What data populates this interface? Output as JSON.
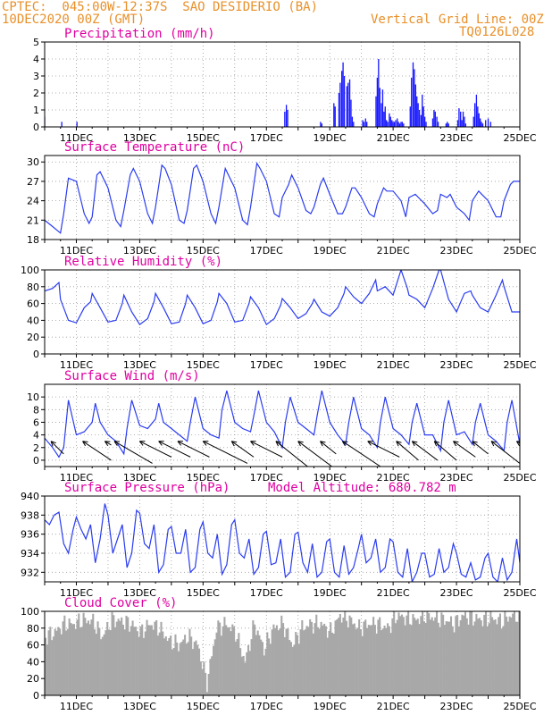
{
  "header": {
    "line1": "CPTEC:  045:00W-12:37S  SAO DESIDERIO (BA)",
    "line2": "10DEC2020 00Z (GMT)",
    "grid_note": "Vertical Grid Line: 00Z",
    "code": "TQ0126L028"
  },
  "colors": {
    "header": "#e8902a",
    "title": "#e000a0",
    "line": "#2a3cf0",
    "bar": "#1a1aff",
    "cloud": "#a8a8a8",
    "arrow": "#000000"
  },
  "x_axis": {
    "start_day": 10,
    "end_day": 25,
    "labels": [
      {
        "day": 11,
        "text": "11DEC"
      },
      {
        "day": 13,
        "text": "13DEC"
      },
      {
        "day": 15,
        "text": "15DEC"
      },
      {
        "day": 17,
        "text": "17DEC"
      },
      {
        "day": 19,
        "text": "19DEC"
      },
      {
        "day": 21,
        "text": "21DEC"
      },
      {
        "day": 23,
        "text": "23DEC"
      },
      {
        "day": 25,
        "text": "25DEC"
      }
    ]
  },
  "chart_data": [
    {
      "type": "bar",
      "title": "Precipitation (mm/h)",
      "ylim": [
        0,
        5
      ],
      "yticks": [
        0,
        1,
        2,
        3,
        4,
        5
      ],
      "x": [
        10.0,
        10.54,
        11.02,
        17.58,
        17.63,
        17.67,
        18.71,
        18.75,
        19.13,
        19.17,
        19.29,
        19.33,
        19.38,
        19.42,
        19.46,
        19.54,
        19.58,
        19.63,
        19.67,
        19.71,
        19.75,
        20.04,
        20.08,
        20.13,
        20.17,
        20.46,
        20.5,
        20.54,
        20.58,
        20.63,
        20.67,
        20.71,
        20.75,
        20.79,
        20.83,
        20.88,
        20.92,
        20.96,
        21.0,
        21.04,
        21.08,
        21.13,
        21.17,
        21.21,
        21.25,
        21.29,
        21.33,
        21.54,
        21.58,
        21.63,
        21.67,
        21.71,
        21.75,
        21.79,
        21.83,
        21.88,
        21.92,
        21.96,
        22.0,
        22.04,
        22.25,
        22.29,
        22.33,
        22.38,
        22.42,
        22.67,
        22.71,
        22.75,
        23.04,
        23.08,
        23.13,
        23.17,
        23.21,
        23.25,
        23.29,
        23.54,
        23.58,
        23.63,
        23.67,
        23.71,
        23.75,
        23.79,
        23.83,
        23.92,
        24.0,
        24.08
      ],
      "values": [
        0.6,
        0.3,
        0.3,
        0.9,
        1.3,
        1.0,
        0.3,
        0.2,
        1.4,
        1.2,
        2.0,
        2.6,
        3.3,
        3.8,
        3.0,
        2.4,
        2.6,
        2.8,
        1.6,
        0.6,
        0.3,
        0.4,
        0.3,
        0.5,
        0.3,
        1.8,
        2.9,
        4.0,
        2.3,
        1.4,
        2.2,
        0.9,
        1.2,
        0.4,
        0.3,
        0.8,
        0.6,
        0.4,
        0.3,
        0.3,
        0.4,
        0.5,
        0.3,
        0.2,
        0.3,
        0.3,
        0.2,
        1.2,
        2.9,
        3.8,
        3.4,
        2.5,
        1.8,
        1.4,
        1.0,
        0.7,
        1.9,
        1.2,
        0.6,
        0.3,
        0.5,
        1.0,
        0.9,
        0.6,
        0.3,
        0.2,
        0.3,
        0.2,
        0.4,
        1.1,
        0.9,
        0.4,
        0.9,
        0.6,
        0.2,
        0.6,
        1.4,
        1.9,
        1.2,
        0.8,
        0.5,
        0.3,
        0.2,
        0.4,
        0.5,
        0.3
      ]
    },
    {
      "type": "line",
      "title": "Surface Temperature (nC)",
      "ylim": [
        18,
        31
      ],
      "yticks": [
        18,
        21,
        24,
        27,
        30
      ],
      "x": [
        10.0,
        10.25,
        10.5,
        10.6,
        10.75,
        11.0,
        11.25,
        11.4,
        11.5,
        11.65,
        11.75,
        12.0,
        12.25,
        12.4,
        12.5,
        12.7,
        12.8,
        13.0,
        13.25,
        13.4,
        13.5,
        13.7,
        13.8,
        14.0,
        14.25,
        14.4,
        14.5,
        14.7,
        14.8,
        15.0,
        15.25,
        15.4,
        15.5,
        15.7,
        15.8,
        16.0,
        16.25,
        16.4,
        16.5,
        16.7,
        16.8,
        17.0,
        17.25,
        17.4,
        17.5,
        17.7,
        17.8,
        18.0,
        18.25,
        18.4,
        18.5,
        18.7,
        18.8,
        19.0,
        19.25,
        19.4,
        19.5,
        19.7,
        19.8,
        20.0,
        20.25,
        20.4,
        20.5,
        20.7,
        20.8,
        21.0,
        21.25,
        21.4,
        21.5,
        21.7,
        21.8,
        22.0,
        22.25,
        22.4,
        22.5,
        22.7,
        22.8,
        23.0,
        23.25,
        23.4,
        23.5,
        23.7,
        23.8,
        24.0,
        24.25,
        24.4,
        24.5,
        24.7,
        24.8,
        25.0
      ],
      "values": [
        21.0,
        20.0,
        19.0,
        22.0,
        27.5,
        27.0,
        22.0,
        20.5,
        21.5,
        28.0,
        28.5,
        26.0,
        21.0,
        20.0,
        22.5,
        28.0,
        29.0,
        27.0,
        22.0,
        20.5,
        23.0,
        29.5,
        29.0,
        26.5,
        21.0,
        20.5,
        22.5,
        29.0,
        29.5,
        27.0,
        22.0,
        20.5,
        23.0,
        29.0,
        28.0,
        26.0,
        21.0,
        20.3,
        23.0,
        29.8,
        29.0,
        27.0,
        22.0,
        21.5,
        24.5,
        26.5,
        28.0,
        26.0,
        22.5,
        22.0,
        23.0,
        26.5,
        27.5,
        25.0,
        22.0,
        22.0,
        23.0,
        26.0,
        26.0,
        24.5,
        22.0,
        21.5,
        23.5,
        26.0,
        25.5,
        25.5,
        24.0,
        21.5,
        24.5,
        25.0,
        24.5,
        23.5,
        22.0,
        22.5,
        25.0,
        24.5,
        25.0,
        23.0,
        22.0,
        21.0,
        24.0,
        25.5,
        25.0,
        24.0,
        21.5,
        21.5,
        24.0,
        26.5,
        27.0,
        27.0
      ]
    },
    {
      "type": "line",
      "title": "Relative Humidity (%)",
      "ylim": [
        0,
        100
      ],
      "yticks": [
        0,
        20,
        40,
        60,
        80,
        100
      ],
      "x": [
        10.0,
        10.25,
        10.45,
        10.5,
        10.75,
        11.0,
        11.25,
        11.45,
        11.5,
        11.75,
        12.0,
        12.25,
        12.45,
        12.5,
        12.75,
        13.0,
        13.25,
        13.45,
        13.5,
        13.75,
        14.0,
        14.25,
        14.45,
        14.5,
        14.75,
        15.0,
        15.25,
        15.45,
        15.5,
        15.75,
        16.0,
        16.25,
        16.45,
        16.5,
        16.75,
        17.0,
        17.25,
        17.45,
        17.5,
        17.75,
        18.0,
        18.25,
        18.45,
        18.5,
        18.75,
        19.0,
        19.25,
        19.45,
        19.5,
        19.75,
        20.0,
        20.25,
        20.45,
        20.5,
        20.75,
        21.0,
        21.25,
        21.45,
        21.5,
        21.75,
        22.0,
        22.25,
        22.45,
        22.5,
        22.75,
        23.0,
        23.25,
        23.45,
        23.5,
        23.75,
        24.0,
        24.25,
        24.45,
        24.5,
        24.75,
        25.0
      ],
      "values": [
        75,
        78,
        85,
        65,
        40,
        37,
        55,
        62,
        72,
        55,
        38,
        40,
        60,
        70,
        50,
        35,
        42,
        62,
        72,
        55,
        36,
        38,
        60,
        70,
        55,
        36,
        40,
        62,
        72,
        60,
        38,
        40,
        60,
        68,
        55,
        35,
        42,
        58,
        66,
        55,
        42,
        48,
        60,
        65,
        50,
        45,
        55,
        72,
        80,
        68,
        60,
        72,
        88,
        75,
        80,
        70,
        100,
        78,
        70,
        65,
        55,
        78,
        100,
        100,
        65,
        50,
        72,
        75,
        70,
        55,
        50,
        70,
        88,
        80,
        50,
        50
      ]
    },
    {
      "type": "line",
      "title": "Surface Wind (m/s)",
      "ylim": [
        -1,
        12
      ],
      "yticks": [
        0,
        2,
        4,
        6,
        8,
        10
      ],
      "x": [
        10.0,
        10.25,
        10.45,
        10.6,
        10.75,
        11.0,
        11.25,
        11.5,
        11.6,
        11.75,
        12.0,
        12.25,
        12.5,
        12.6,
        12.75,
        13.0,
        13.25,
        13.5,
        13.6,
        13.75,
        14.0,
        14.25,
        14.5,
        14.6,
        14.75,
        15.0,
        15.25,
        15.5,
        15.6,
        15.75,
        16.0,
        16.25,
        16.5,
        16.6,
        16.75,
        17.0,
        17.25,
        17.5,
        17.6,
        17.75,
        18.0,
        18.25,
        18.5,
        18.6,
        18.75,
        19.0,
        19.25,
        19.5,
        19.6,
        19.75,
        20.0,
        20.25,
        20.5,
        20.6,
        20.75,
        21.0,
        21.25,
        21.5,
        21.6,
        21.75,
        22.0,
        22.25,
        22.5,
        22.6,
        22.75,
        23.0,
        23.25,
        23.5,
        23.6,
        23.75,
        24.0,
        24.25,
        24.5,
        24.6,
        24.75,
        25.0
      ],
      "values": [
        3.5,
        2.0,
        0.5,
        2.0,
        9.5,
        4.0,
        4.5,
        6.0,
        9.0,
        6.0,
        4.0,
        3.0,
        1.0,
        5.0,
        9.5,
        5.5,
        5.0,
        6.5,
        9.0,
        6.0,
        5.0,
        4.0,
        3.0,
        6.0,
        10.0,
        5.0,
        4.0,
        3.5,
        8.0,
        11.0,
        6.0,
        5.0,
        4.5,
        7.0,
        11.0,
        6.0,
        4.5,
        2.0,
        6.0,
        10.0,
        6.0,
        5.0,
        4.0,
        7.0,
        11.0,
        6.0,
        4.0,
        2.5,
        6.0,
        10.0,
        5.0,
        4.0,
        2.0,
        6.0,
        10.0,
        5.0,
        4.0,
        2.5,
        6.0,
        9.0,
        4.0,
        4.0,
        1.5,
        6.0,
        9.5,
        4.0,
        4.5,
        2.5,
        6.0,
        9.0,
        4.0,
        3.0,
        1.5,
        6.0,
        9.5,
        2.5
      ],
      "arrows": [
        {
          "x": 10.2,
          "dx": 0.4,
          "dy": 2.0
        },
        {
          "x": 11.2,
          "dx": 0.9,
          "dy": 3.0
        },
        {
          "x": 11.9,
          "dx": 0.2,
          "dy": 0.6
        },
        {
          "x": 12.2,
          "dx": 1.2,
          "dy": 3.5
        },
        {
          "x": 13.0,
          "dx": 1.0,
          "dy": 2.5
        },
        {
          "x": 13.6,
          "dx": 1.0,
          "dy": 2.5
        },
        {
          "x": 14.2,
          "dx": 1.0,
          "dy": 2.5
        },
        {
          "x": 15.0,
          "dx": 1.4,
          "dy": 3.5
        },
        {
          "x": 15.9,
          "dx": 0.7,
          "dy": 2.5
        },
        {
          "x": 16.5,
          "dx": 1.0,
          "dy": 2.5
        },
        {
          "x": 17.3,
          "dx": 1.0,
          "dy": 4.0
        },
        {
          "x": 18.0,
          "dx": 1.2,
          "dy": 4.5
        },
        {
          "x": 18.7,
          "dx": 0.5,
          "dy": 2.0
        },
        {
          "x": 19.4,
          "dx": 1.2,
          "dy": 4.0
        },
        {
          "x": 20.2,
          "dx": 1.0,
          "dy": 2.5
        },
        {
          "x": 21.1,
          "dx": 0.7,
          "dy": 3.0
        },
        {
          "x": 21.6,
          "dx": 0.8,
          "dy": 3.0
        },
        {
          "x": 22.3,
          "dx": 0.7,
          "dy": 3.0
        },
        {
          "x": 22.9,
          "dx": 0.7,
          "dy": 2.5
        },
        {
          "x": 23.5,
          "dx": 0.5,
          "dy": 2.0
        },
        {
          "x": 24.1,
          "dx": 0.9,
          "dy": 3.5
        },
        {
          "x": 24.9,
          "dx": 0.6,
          "dy": 2.0
        }
      ]
    },
    {
      "type": "line",
      "title": "Surface Pressure (hPa)",
      "note": "Model Altitude: 680.782 m",
      "ylim": [
        931,
        940
      ],
      "yticks": [
        932,
        934,
        936,
        938,
        940
      ],
      "x": [
        10.0,
        10.15,
        10.3,
        10.45,
        10.6,
        10.75,
        10.9,
        11.0,
        11.15,
        11.3,
        11.45,
        11.6,
        11.75,
        11.9,
        12.0,
        12.15,
        12.3,
        12.45,
        12.6,
        12.75,
        12.9,
        13.0,
        13.15,
        13.3,
        13.45,
        13.6,
        13.75,
        13.9,
        14.0,
        14.15,
        14.3,
        14.45,
        14.6,
        14.75,
        14.9,
        15.0,
        15.15,
        15.3,
        15.45,
        15.6,
        15.75,
        15.9,
        16.0,
        16.15,
        16.3,
        16.45,
        16.6,
        16.75,
        16.9,
        17.0,
        17.15,
        17.3,
        17.45,
        17.6,
        17.75,
        17.9,
        18.0,
        18.15,
        18.3,
        18.45,
        18.6,
        18.75,
        18.9,
        19.0,
        19.15,
        19.3,
        19.45,
        19.6,
        19.75,
        19.9,
        20.0,
        20.15,
        20.3,
        20.45,
        20.6,
        20.75,
        20.9,
        21.0,
        21.15,
        21.3,
        21.45,
        21.6,
        21.75,
        21.9,
        22.0,
        22.15,
        22.3,
        22.45,
        22.6,
        22.75,
        22.9,
        23.0,
        23.15,
        23.3,
        23.45,
        23.6,
        23.75,
        23.9,
        24.0,
        24.15,
        24.3,
        24.45,
        24.6,
        24.75,
        24.9,
        25.0
      ],
      "values": [
        937.5,
        937.0,
        938.0,
        938.3,
        935.0,
        934.0,
        936.5,
        937.8,
        936.5,
        935.5,
        937.0,
        933.0,
        935.5,
        939.2,
        938.0,
        934.0,
        935.5,
        937.0,
        932.5,
        934.0,
        938.5,
        938.2,
        935.0,
        934.5,
        937.0,
        932.0,
        932.8,
        936.5,
        936.8,
        934.0,
        934.0,
        936.5,
        932.0,
        932.5,
        936.5,
        937.3,
        934.0,
        933.5,
        936.0,
        931.8,
        932.8,
        937.0,
        937.5,
        934.0,
        933.5,
        935.5,
        931.8,
        932.5,
        936.0,
        936.3,
        932.8,
        933.0,
        935.5,
        931.5,
        932.0,
        936.0,
        936.2,
        933.0,
        932.0,
        935.0,
        931.5,
        932.0,
        935.2,
        935.5,
        932.0,
        931.5,
        934.8,
        931.8,
        932.5,
        934.5,
        936.0,
        933.0,
        933.5,
        935.5,
        932.0,
        932.5,
        935.5,
        935.2,
        932.0,
        931.5,
        934.5,
        931.0,
        932.0,
        934.0,
        934.0,
        931.5,
        931.8,
        934.5,
        932.0,
        932.5,
        935.0,
        934.0,
        931.8,
        931.5,
        933.0,
        931.2,
        931.5,
        933.5,
        934.0,
        931.5,
        931.0,
        933.5,
        931.2,
        932.0,
        935.5,
        933.0
      ]
    },
    {
      "type": "area",
      "title": "Cloud Cover (%)",
      "ylim": [
        0,
        100
      ],
      "yticks": [
        0,
        20,
        40,
        60,
        80,
        100
      ],
      "x": [
        10.0,
        10.3,
        10.6,
        10.9,
        11.2,
        11.5,
        11.8,
        12.1,
        12.4,
        12.7,
        13.0,
        13.3,
        13.6,
        13.9,
        14.2,
        14.5,
        14.8,
        15.1,
        15.4,
        15.7,
        16.0,
        16.3,
        16.6,
        16.9,
        17.2,
        17.5,
        17.8,
        18.1,
        18.4,
        18.7,
        19.0,
        19.3,
        19.6,
        19.9,
        20.2,
        20.5,
        20.8,
        21.1,
        21.4,
        21.7,
        22.0,
        22.3,
        22.6,
        22.9,
        23.2,
        23.5,
        23.8,
        24.1,
        24.4,
        24.7,
        25.0
      ],
      "values": [
        70,
        75,
        85,
        85,
        90,
        88,
        70,
        90,
        88,
        85,
        75,
        85,
        80,
        65,
        60,
        70,
        60,
        15,
        80,
        85,
        75,
        40,
        85,
        55,
        80,
        85,
        60,
        80,
        85,
        85,
        75,
        95,
        90,
        80,
        85,
        85,
        80,
        95,
        92,
        90,
        95,
        92,
        90,
        85,
        95,
        92,
        90,
        92,
        88,
        95,
        95
      ]
    }
  ]
}
